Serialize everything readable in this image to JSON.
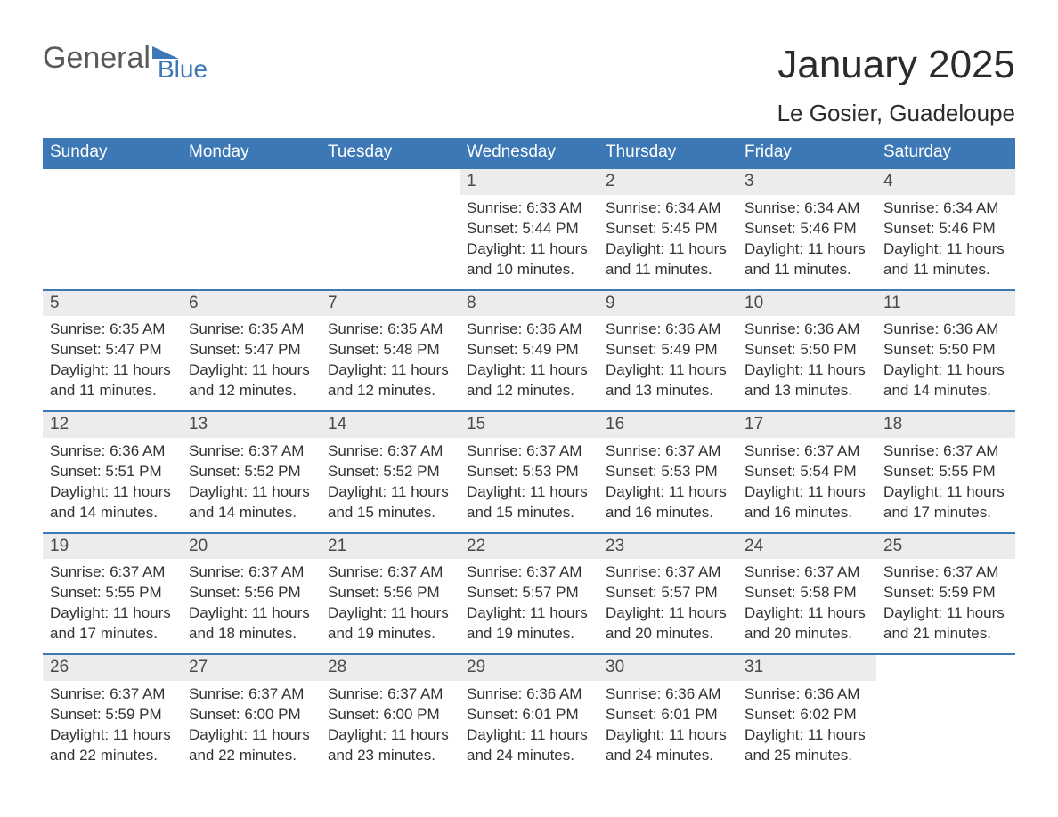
{
  "logo": {
    "word1": "General",
    "word2": "Blue"
  },
  "title": "January 2025",
  "location": "Le Gosier, Guadeloupe",
  "colors": {
    "brand_blue": "#3d78b6",
    "header_text": "#ffffff",
    "daynum_bg": "#ececec",
    "body_text": "#333333",
    "page_bg": "#ffffff"
  },
  "typography": {
    "title_fontsize": 44,
    "location_fontsize": 26,
    "header_fontsize": 19,
    "daynum_fontsize": 19,
    "body_fontsize": 17,
    "font_family": "Arial"
  },
  "layout": {
    "columns": 7,
    "weeks": 5
  },
  "weekday_headers": [
    "Sunday",
    "Monday",
    "Tuesday",
    "Wednesday",
    "Thursday",
    "Friday",
    "Saturday"
  ],
  "weeks": [
    [
      null,
      null,
      null,
      {
        "day": "1",
        "sunrise": "Sunrise: 6:33 AM",
        "sunset": "Sunset: 5:44 PM",
        "daylight": "Daylight: 11 hours and 10 minutes."
      },
      {
        "day": "2",
        "sunrise": "Sunrise: 6:34 AM",
        "sunset": "Sunset: 5:45 PM",
        "daylight": "Daylight: 11 hours and 11 minutes."
      },
      {
        "day": "3",
        "sunrise": "Sunrise: 6:34 AM",
        "sunset": "Sunset: 5:46 PM",
        "daylight": "Daylight: 11 hours and 11 minutes."
      },
      {
        "day": "4",
        "sunrise": "Sunrise: 6:34 AM",
        "sunset": "Sunset: 5:46 PM",
        "daylight": "Daylight: 11 hours and 11 minutes."
      }
    ],
    [
      {
        "day": "5",
        "sunrise": "Sunrise: 6:35 AM",
        "sunset": "Sunset: 5:47 PM",
        "daylight": "Daylight: 11 hours and 11 minutes."
      },
      {
        "day": "6",
        "sunrise": "Sunrise: 6:35 AM",
        "sunset": "Sunset: 5:47 PM",
        "daylight": "Daylight: 11 hours and 12 minutes."
      },
      {
        "day": "7",
        "sunrise": "Sunrise: 6:35 AM",
        "sunset": "Sunset: 5:48 PM",
        "daylight": "Daylight: 11 hours and 12 minutes."
      },
      {
        "day": "8",
        "sunrise": "Sunrise: 6:36 AM",
        "sunset": "Sunset: 5:49 PM",
        "daylight": "Daylight: 11 hours and 12 minutes."
      },
      {
        "day": "9",
        "sunrise": "Sunrise: 6:36 AM",
        "sunset": "Sunset: 5:49 PM",
        "daylight": "Daylight: 11 hours and 13 minutes."
      },
      {
        "day": "10",
        "sunrise": "Sunrise: 6:36 AM",
        "sunset": "Sunset: 5:50 PM",
        "daylight": "Daylight: 11 hours and 13 minutes."
      },
      {
        "day": "11",
        "sunrise": "Sunrise: 6:36 AM",
        "sunset": "Sunset: 5:50 PM",
        "daylight": "Daylight: 11 hours and 14 minutes."
      }
    ],
    [
      {
        "day": "12",
        "sunrise": "Sunrise: 6:36 AM",
        "sunset": "Sunset: 5:51 PM",
        "daylight": "Daylight: 11 hours and 14 minutes."
      },
      {
        "day": "13",
        "sunrise": "Sunrise: 6:37 AM",
        "sunset": "Sunset: 5:52 PM",
        "daylight": "Daylight: 11 hours and 14 minutes."
      },
      {
        "day": "14",
        "sunrise": "Sunrise: 6:37 AM",
        "sunset": "Sunset: 5:52 PM",
        "daylight": "Daylight: 11 hours and 15 minutes."
      },
      {
        "day": "15",
        "sunrise": "Sunrise: 6:37 AM",
        "sunset": "Sunset: 5:53 PM",
        "daylight": "Daylight: 11 hours and 15 minutes."
      },
      {
        "day": "16",
        "sunrise": "Sunrise: 6:37 AM",
        "sunset": "Sunset: 5:53 PM",
        "daylight": "Daylight: 11 hours and 16 minutes."
      },
      {
        "day": "17",
        "sunrise": "Sunrise: 6:37 AM",
        "sunset": "Sunset: 5:54 PM",
        "daylight": "Daylight: 11 hours and 16 minutes."
      },
      {
        "day": "18",
        "sunrise": "Sunrise: 6:37 AM",
        "sunset": "Sunset: 5:55 PM",
        "daylight": "Daylight: 11 hours and 17 minutes."
      }
    ],
    [
      {
        "day": "19",
        "sunrise": "Sunrise: 6:37 AM",
        "sunset": "Sunset: 5:55 PM",
        "daylight": "Daylight: 11 hours and 17 minutes."
      },
      {
        "day": "20",
        "sunrise": "Sunrise: 6:37 AM",
        "sunset": "Sunset: 5:56 PM",
        "daylight": "Daylight: 11 hours and 18 minutes."
      },
      {
        "day": "21",
        "sunrise": "Sunrise: 6:37 AM",
        "sunset": "Sunset: 5:56 PM",
        "daylight": "Daylight: 11 hours and 19 minutes."
      },
      {
        "day": "22",
        "sunrise": "Sunrise: 6:37 AM",
        "sunset": "Sunset: 5:57 PM",
        "daylight": "Daylight: 11 hours and 19 minutes."
      },
      {
        "day": "23",
        "sunrise": "Sunrise: 6:37 AM",
        "sunset": "Sunset: 5:57 PM",
        "daylight": "Daylight: 11 hours and 20 minutes."
      },
      {
        "day": "24",
        "sunrise": "Sunrise: 6:37 AM",
        "sunset": "Sunset: 5:58 PM",
        "daylight": "Daylight: 11 hours and 20 minutes."
      },
      {
        "day": "25",
        "sunrise": "Sunrise: 6:37 AM",
        "sunset": "Sunset: 5:59 PM",
        "daylight": "Daylight: 11 hours and 21 minutes."
      }
    ],
    [
      {
        "day": "26",
        "sunrise": "Sunrise: 6:37 AM",
        "sunset": "Sunset: 5:59 PM",
        "daylight": "Daylight: 11 hours and 22 minutes."
      },
      {
        "day": "27",
        "sunrise": "Sunrise: 6:37 AM",
        "sunset": "Sunset: 6:00 PM",
        "daylight": "Daylight: 11 hours and 22 minutes."
      },
      {
        "day": "28",
        "sunrise": "Sunrise: 6:37 AM",
        "sunset": "Sunset: 6:00 PM",
        "daylight": "Daylight: 11 hours and 23 minutes."
      },
      {
        "day": "29",
        "sunrise": "Sunrise: 6:36 AM",
        "sunset": "Sunset: 6:01 PM",
        "daylight": "Daylight: 11 hours and 24 minutes."
      },
      {
        "day": "30",
        "sunrise": "Sunrise: 6:36 AM",
        "sunset": "Sunset: 6:01 PM",
        "daylight": "Daylight: 11 hours and 24 minutes."
      },
      {
        "day": "31",
        "sunrise": "Sunrise: 6:36 AM",
        "sunset": "Sunset: 6:02 PM",
        "daylight": "Daylight: 11 hours and 25 minutes."
      },
      null
    ]
  ]
}
